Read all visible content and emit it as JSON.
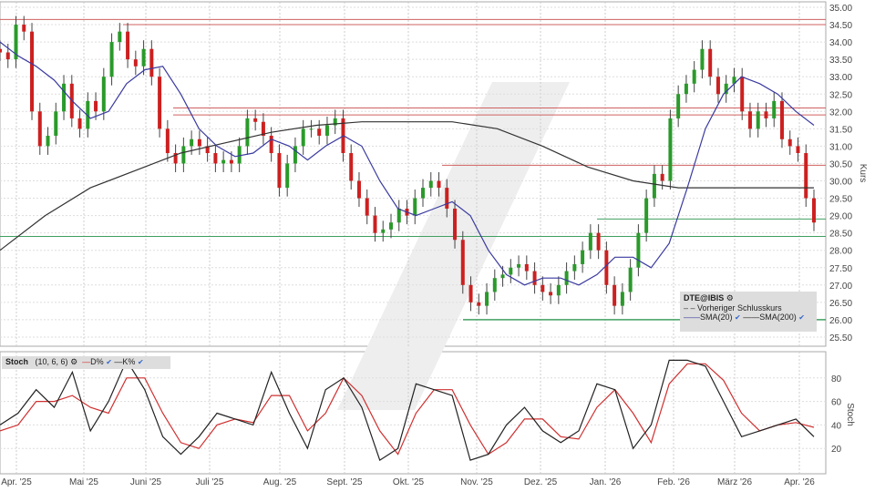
{
  "chart_data": [
    {
      "type": "candlestick",
      "symbol": "DTE@IBIS",
      "ylabel": "Kurs",
      "ylim": [
        25.5,
        35.0
      ],
      "yticks": [
        "35.00",
        "34.50",
        "34.00",
        "33.50",
        "33.00",
        "32.50",
        "32.00",
        "31.50",
        "31.00",
        "30.50",
        "30.00",
        "29.50",
        "29.00",
        "28.50",
        "28.00",
        "27.50",
        "27.00",
        "26.50",
        "26.00",
        "25.50"
      ],
      "xticks": [
        "Apr. '25",
        "Mai '25",
        "Juni '25",
        "Juli '25",
        "Aug. '25",
        "Sept. '25",
        "Okt. '25",
        "Nov. '25",
        "Dez. '25",
        "Jan. '26",
        "Feb. '26",
        "März '26",
        "Apr. '26"
      ],
      "grid": true,
      "close": [
        33.7,
        33.5,
        34.5,
        34.3,
        32.0,
        31.0,
        31.3,
        32.0,
        32.8,
        31.8,
        31.5,
        32.3,
        32.0,
        33.0,
        34.0,
        34.3,
        33.5,
        33.3,
        33.8,
        33.0,
        31.5,
        30.8,
        30.5,
        31.0,
        31.2,
        31.0,
        30.8,
        30.5,
        30.6,
        30.5,
        31.0,
        31.8,
        31.7,
        31.3,
        30.8,
        29.8,
        30.5,
        31.0,
        31.5,
        31.5,
        31.3,
        31.6,
        31.8,
        30.8,
        30.0,
        29.5,
        29.0,
        28.5,
        28.6,
        28.8,
        29.2,
        29.0,
        29.5,
        29.8,
        30.0,
        29.8,
        29.2,
        28.3,
        27.0,
        26.5,
        26.4,
        26.8,
        27.2,
        27.3,
        27.5,
        27.6,
        27.4,
        27.0,
        26.8,
        26.7,
        27.0,
        27.4,
        27.6,
        28.0,
        28.5,
        28.0,
        27.0,
        26.4,
        26.8,
        27.5,
        28.5,
        29.5,
        30.2,
        30.0,
        31.8,
        32.5,
        32.8,
        33.2,
        33.8,
        33.0,
        32.5,
        32.8,
        33.0,
        32.0,
        31.5,
        32.0,
        31.8,
        32.3,
        31.2,
        31.0,
        30.8,
        29.5,
        28.8
      ],
      "series": [
        {
          "name": "SMA(20)",
          "color": "#3a3aa0",
          "values": [
            34.0,
            33.6,
            33.3,
            32.9,
            32.3,
            31.8,
            32.0,
            32.8,
            33.2,
            33.3,
            32.5,
            31.5,
            31.0,
            30.7,
            30.8,
            31.2,
            31.0,
            30.6,
            31.0,
            31.3,
            31.0,
            30.0,
            29.2,
            29.0,
            29.2,
            29.4,
            29.0,
            28.0,
            27.3,
            27.0,
            27.2,
            27.2,
            27.0,
            27.3,
            27.8,
            27.8,
            27.5,
            28.2,
            29.8,
            31.5,
            32.5,
            33.0,
            32.8,
            32.5,
            32.0,
            31.6
          ]
        },
        {
          "name": "SMA(200)",
          "color": "#333333",
          "values": [
            28.0,
            29.0,
            29.8,
            30.3,
            30.8,
            31.1,
            31.4,
            31.6,
            31.7,
            31.7,
            31.7,
            31.5,
            31.0,
            30.4,
            30.0,
            29.8,
            29.8,
            29.8,
            29.8
          ]
        }
      ],
      "levels_red": [
        34.65,
        34.5,
        32.1,
        31.9,
        30.45
      ],
      "levels_green": [
        28.9,
        28.4,
        26.0
      ],
      "legend": {
        "title": "DTE@IBIS",
        "prev_close": "Vorheriger Schlusskurs",
        "sma20": "SMA(20)",
        "sma200": "SMA(200)"
      }
    },
    {
      "type": "line",
      "title": "Stoch",
      "params": "(10, 6, 6)",
      "ylabel": "Stoch",
      "ylim": [
        0,
        100
      ],
      "yticks": [
        "80",
        "60",
        "40",
        "20"
      ],
      "series": [
        {
          "name": "D%",
          "color": "#d03030",
          "values": [
            35,
            40,
            60,
            60,
            65,
            55,
            50,
            80,
            80,
            50,
            25,
            20,
            40,
            45,
            42,
            65,
            65,
            35,
            50,
            80,
            65,
            35,
            15,
            50,
            70,
            70,
            40,
            15,
            25,
            45,
            45,
            30,
            28,
            55,
            70,
            50,
            25,
            75,
            92,
            92,
            78,
            50,
            35,
            40,
            42,
            38
          ]
        },
        {
          "name": "K%",
          "color": "#222222",
          "values": [
            40,
            50,
            70,
            55,
            85,
            35,
            60,
            95,
            70,
            30,
            15,
            30,
            50,
            45,
            40,
            85,
            50,
            20,
            70,
            80,
            55,
            10,
            20,
            75,
            70,
            65,
            10,
            15,
            40,
            55,
            35,
            25,
            35,
            75,
            70,
            20,
            40,
            95,
            95,
            90,
            60,
            30,
            35,
            40,
            45,
            30
          ]
        }
      ]
    }
  ]
}
